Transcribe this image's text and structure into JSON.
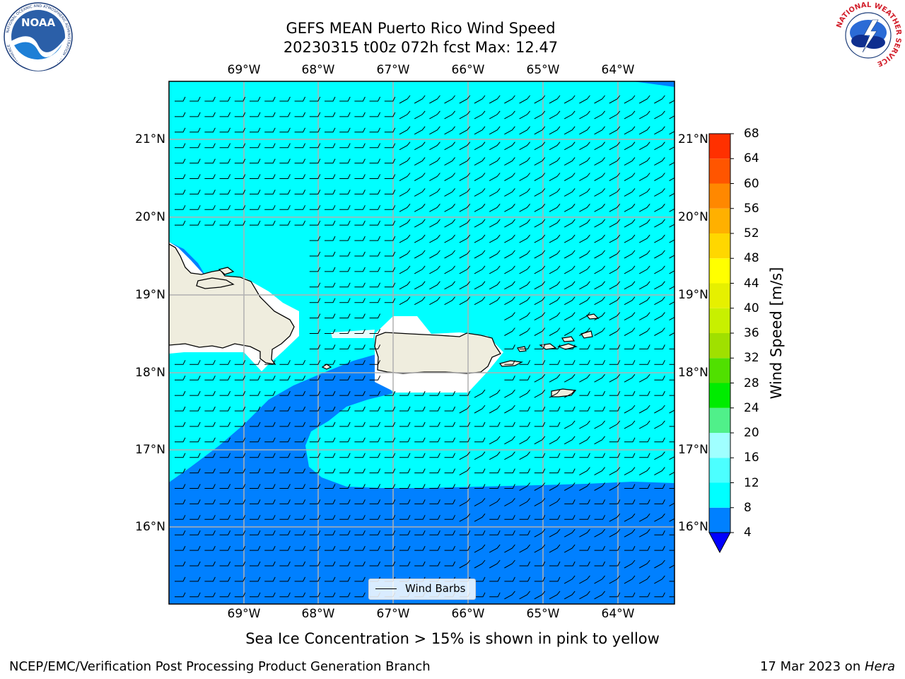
{
  "title": {
    "line1": "GEFS MEAN Puerto Rico Wind Speed",
    "line2": "20230315 t00z 072h fcst   Max: 12.47"
  },
  "map": {
    "lon_labels": [
      "69°W",
      "68°W",
      "67°W",
      "66°W",
      "65°W",
      "64°W"
    ],
    "lat_labels": [
      "21°N",
      "20°N",
      "19°N",
      "18°N",
      "17°N",
      "16°N"
    ],
    "land_color": "#efedde",
    "colors": {
      "range_4_8": "#0080ff",
      "range_8_12": "#00ffff"
    }
  },
  "legend": {
    "label": "Wind Barbs"
  },
  "colorbar": {
    "label": "Wind Speed [m/s]",
    "ticks": [
      "68",
      "64",
      "60",
      "56",
      "52",
      "48",
      "44",
      "40",
      "36",
      "32",
      "28",
      "24",
      "20",
      "16",
      "12",
      "8",
      "4"
    ],
    "levels": [
      4,
      8,
      12,
      16,
      20,
      24,
      28,
      32,
      36,
      40,
      44,
      48,
      52,
      56,
      60,
      64,
      68
    ],
    "colors": [
      "#0080ff",
      "#00ffff",
      "#4cffff",
      "#a0ffff",
      "#50f08a",
      "#00ec00",
      "#50e000",
      "#a0e000",
      "#c8f000",
      "#e6f000",
      "#ffff00",
      "#ffd700",
      "#ffb000",
      "#ff8800",
      "#ff5500",
      "#ff3000",
      "#ff0000"
    ],
    "under_color": "#0000ff"
  },
  "subtitle": "Sea Ice Concentration > 15% is shown in pink to yellow",
  "footer": {
    "left": "NCEP/EMC/Verification Post Processing Product Generation Branch",
    "right_prefix": "17 Mar 2023 on ",
    "right_host": "Hera"
  },
  "logos": {
    "noaa": "NOAA",
    "noaa_ring": "NATIONAL OCEANIC AND ATMOSPHERIC ADMINISTRATION · U.S. DEPARTMENT OF COMMERCE",
    "nws_ring": "NATIONAL WEATHER SERVICE"
  }
}
